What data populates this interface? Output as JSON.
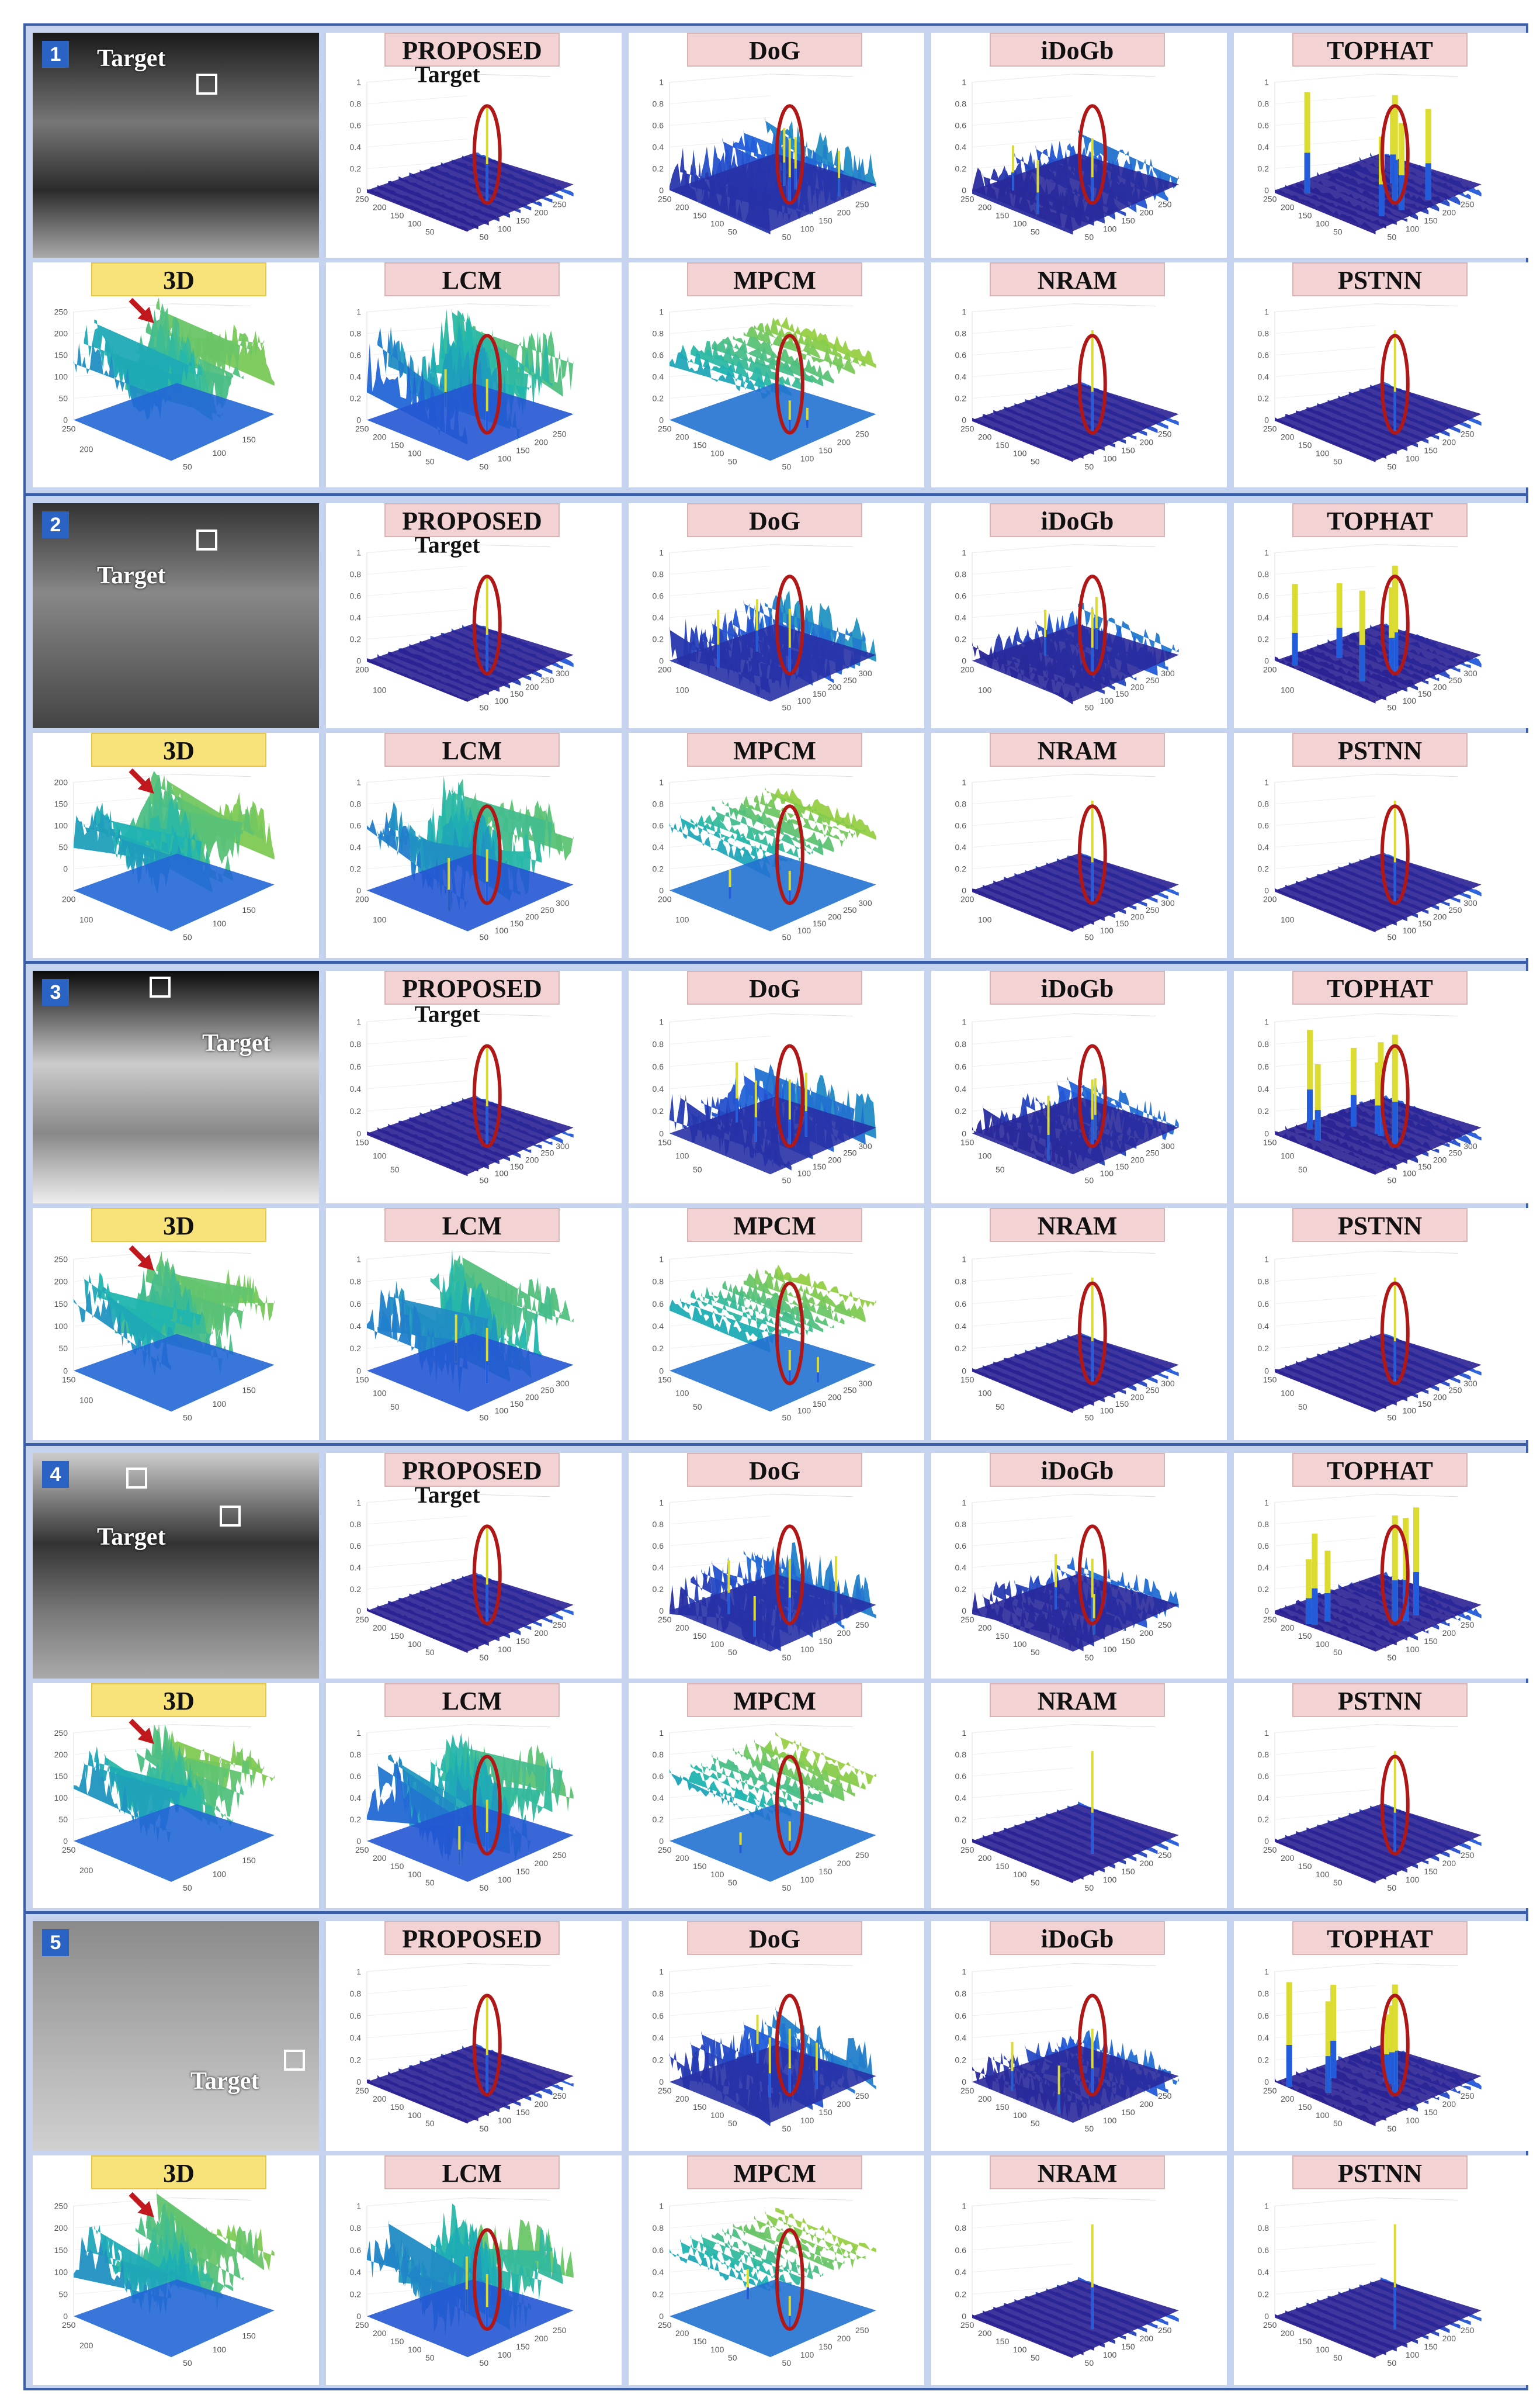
{
  "method_headers": [
    "PROPOSED",
    "DoG",
    "iDoGb",
    "TOPHAT",
    "3D",
    "LCM",
    "MPCM",
    "NRAM",
    "PSTNN"
  ],
  "target_word": "Target",
  "groups": [
    {
      "number": "1",
      "proposed_target_label": "Target",
      "input_label": "Target",
      "z_ticks": [
        "1",
        "0.8",
        "0.6",
        "0.4",
        "0.2",
        "0"
      ],
      "axis_ticks_a": [
        "250",
        "200",
        "150",
        "100",
        "50"
      ],
      "axis_ticks_b": [
        "50",
        "100",
        "150",
        "200",
        "250"
      ],
      "td_ticks": [
        "250",
        "200",
        "150",
        "100",
        "50",
        "0"
      ]
    },
    {
      "number": "2",
      "proposed_target_label": "Target",
      "input_label": "Target",
      "z_ticks": [
        "1",
        "0.8",
        "0.6",
        "0.4",
        "0.2",
        "0"
      ],
      "axis_ticks_a": [
        "200",
        "100"
      ],
      "axis_ticks_b": [
        "50",
        "100",
        "150",
        "200",
        "250",
        "300"
      ],
      "td_ticks": [
        "200",
        "150",
        "100",
        "50",
        "0"
      ]
    },
    {
      "number": "3",
      "proposed_target_label": "Target",
      "input_label": "Target",
      "z_ticks": [
        "1",
        "0.8",
        "0.6",
        "0.4",
        "0.2",
        "0"
      ],
      "axis_ticks_a": [
        "150",
        "100",
        "50"
      ],
      "axis_ticks_b": [
        "50",
        "100",
        "150",
        "200",
        "250",
        "300"
      ],
      "td_ticks": [
        "250",
        "200",
        "150",
        "100",
        "50",
        "0"
      ]
    },
    {
      "number": "4",
      "proposed_target_label": "Target",
      "input_label": "Target",
      "z_ticks": [
        "1",
        "0.8",
        "0.6",
        "0.4",
        "0.2",
        "0"
      ],
      "axis_ticks_a": [
        "250",
        "200",
        "150",
        "100",
        "50"
      ],
      "axis_ticks_b": [
        "50",
        "100",
        "150",
        "200",
        "250"
      ],
      "td_ticks": [
        "250",
        "200",
        "150",
        "100",
        "50",
        "0"
      ]
    },
    {
      "number": "5",
      "proposed_target_label": "",
      "input_label": "Target",
      "z_ticks": [
        "1",
        "0.8",
        "0.6",
        "0.4",
        "0.2",
        "0"
      ],
      "axis_ticks_a": [
        "250",
        "200",
        "150",
        "100",
        "50"
      ],
      "axis_ticks_b": [
        "50",
        "100",
        "150",
        "200",
        "250"
      ],
      "td_ticks": [
        "250",
        "200",
        "150",
        "100",
        "50",
        "0"
      ]
    }
  ],
  "colors": {
    "frame": "#3a5fa8",
    "panel_bg": "#c6d3ee",
    "method_tag": "#f2d2d2",
    "threed_tag": "#f8e27a",
    "badge": "#2b63c5",
    "circle": "#b01818",
    "arrow": "#c0181c",
    "surface_low": "#2a1f8f",
    "surface_mid": "#1fb5b0",
    "surface_high": "#f5e02a"
  }
}
